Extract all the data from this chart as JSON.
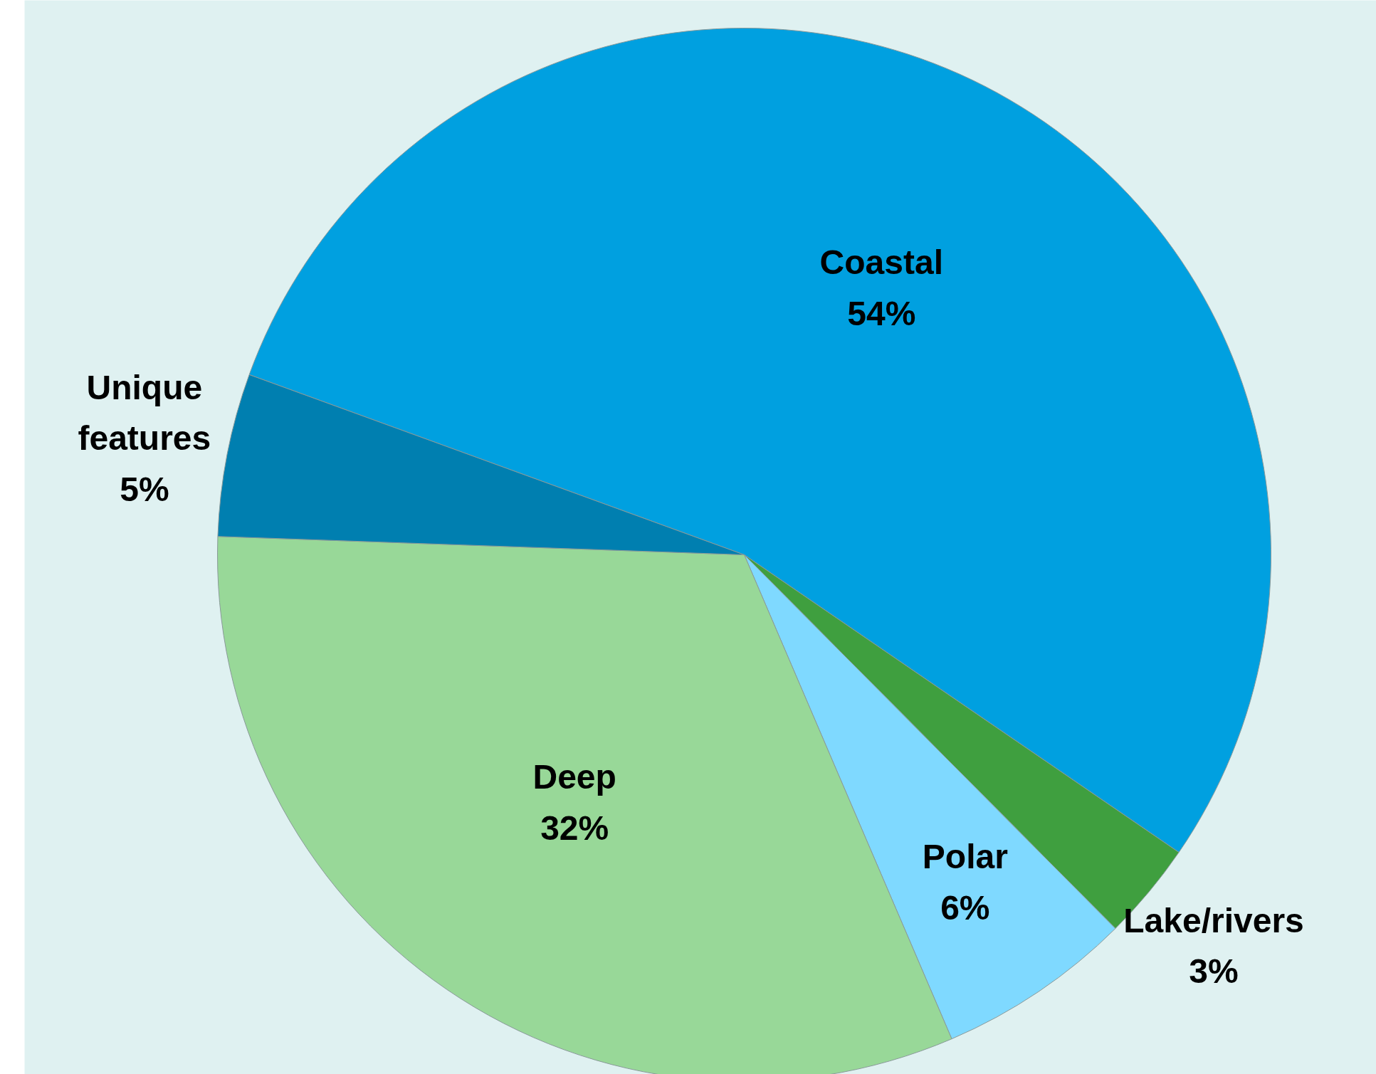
{
  "chart_data": {
    "type": "pie",
    "categories": [
      "Coastal",
      "Lake/rivers",
      "Polar",
      "Deep",
      "Unique features"
    ],
    "values": [
      54,
      3,
      6,
      32,
      5
    ],
    "colors": [
      "#00a0e0",
      "#3f9f3f",
      "#7fd9ff",
      "#98d898",
      "#007fb0"
    ],
    "value_labels": [
      "54%",
      "3%",
      "6%",
      "32%",
      "5%"
    ]
  }
}
